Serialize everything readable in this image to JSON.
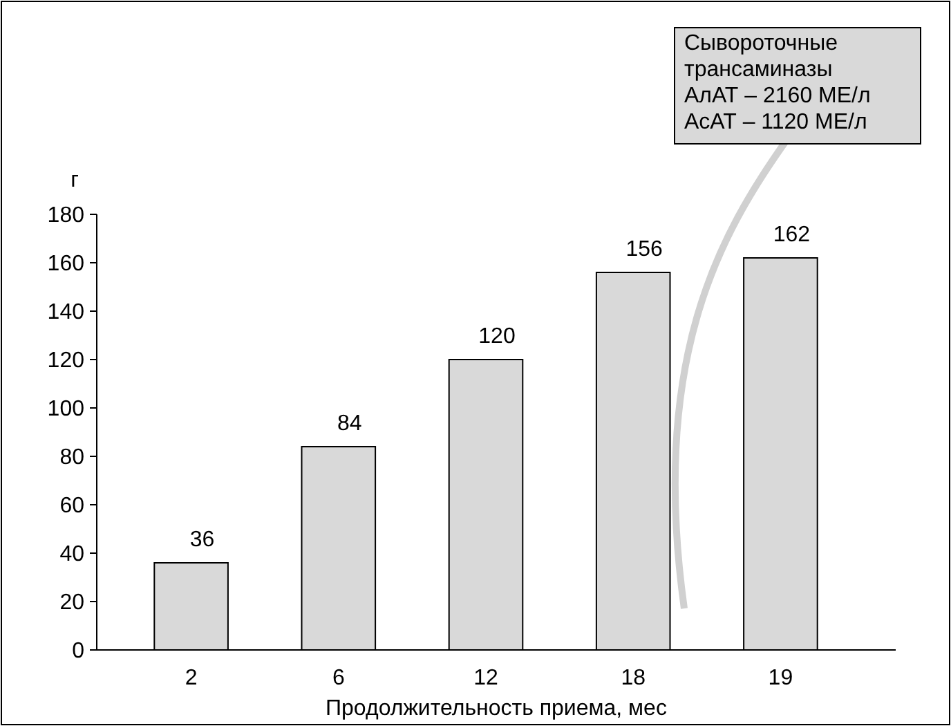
{
  "chart_data": {
    "type": "bar",
    "ylabel": "г",
    "xlabel": "Продолжительность приема, мес",
    "categories": [
      "2",
      "6",
      "12",
      "18",
      "19"
    ],
    "values": [
      36,
      84,
      120,
      156,
      162
    ],
    "color": "#d9d9d9",
    "ylim": [
      0,
      180
    ],
    "yticks": [
      0,
      20,
      40,
      60,
      80,
      100,
      120,
      140,
      160,
      180
    ],
    "grid": false,
    "data_labels": true,
    "annotations": [
      "Сывороточные\nтрансаминазы\nАлАТ – 2160 МЕ/л\nАсАТ – 1120 МЕ/л"
    ]
  }
}
